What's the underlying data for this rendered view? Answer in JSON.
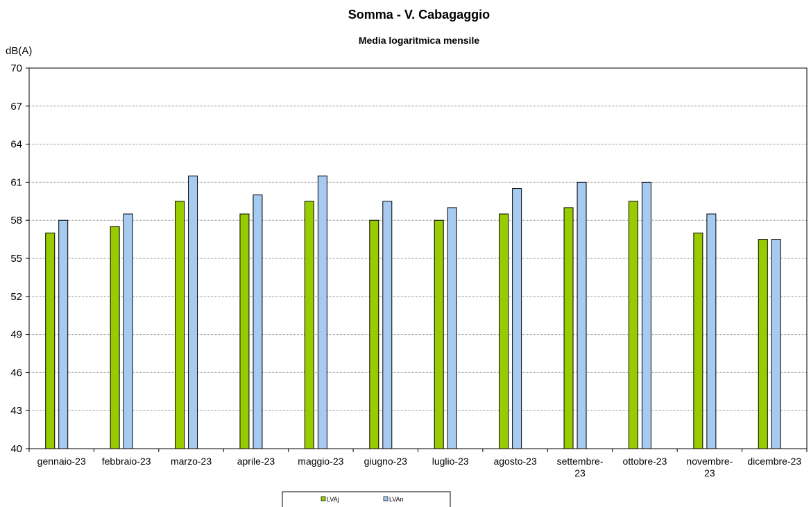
{
  "chart_data": {
    "type": "bar",
    "title": "Somma - V. Cabagaggio",
    "subtitle": "Media logaritmica mensile",
    "y_label": "dB(A)",
    "categories": [
      "gennaio-23",
      "febbraio-23",
      "marzo-23",
      "aprile-23",
      "maggio-23",
      "giugno-23",
      "luglio-23",
      "agosto-23",
      "settembre-23",
      "ottobre-23",
      "novembre-23",
      "dicembre-23"
    ],
    "series": [
      {
        "name": "LVAj",
        "color": "#99cc00",
        "values": [
          57,
          57.5,
          59.5,
          58.5,
          59.5,
          58,
          58,
          58.5,
          59,
          59.5,
          57,
          56.5
        ]
      },
      {
        "name": "LVAn",
        "color": "#a6caf0",
        "values": [
          58,
          58.5,
          61.5,
          60,
          61.5,
          59.5,
          59,
          60.5,
          61,
          61,
          58.5,
          56.5
        ]
      }
    ],
    "ylim": [
      40,
      70
    ],
    "yticks": [
      40,
      43,
      46,
      49,
      52,
      55,
      58,
      61,
      64,
      67,
      70
    ],
    "grid": true,
    "legend": "bottom"
  }
}
